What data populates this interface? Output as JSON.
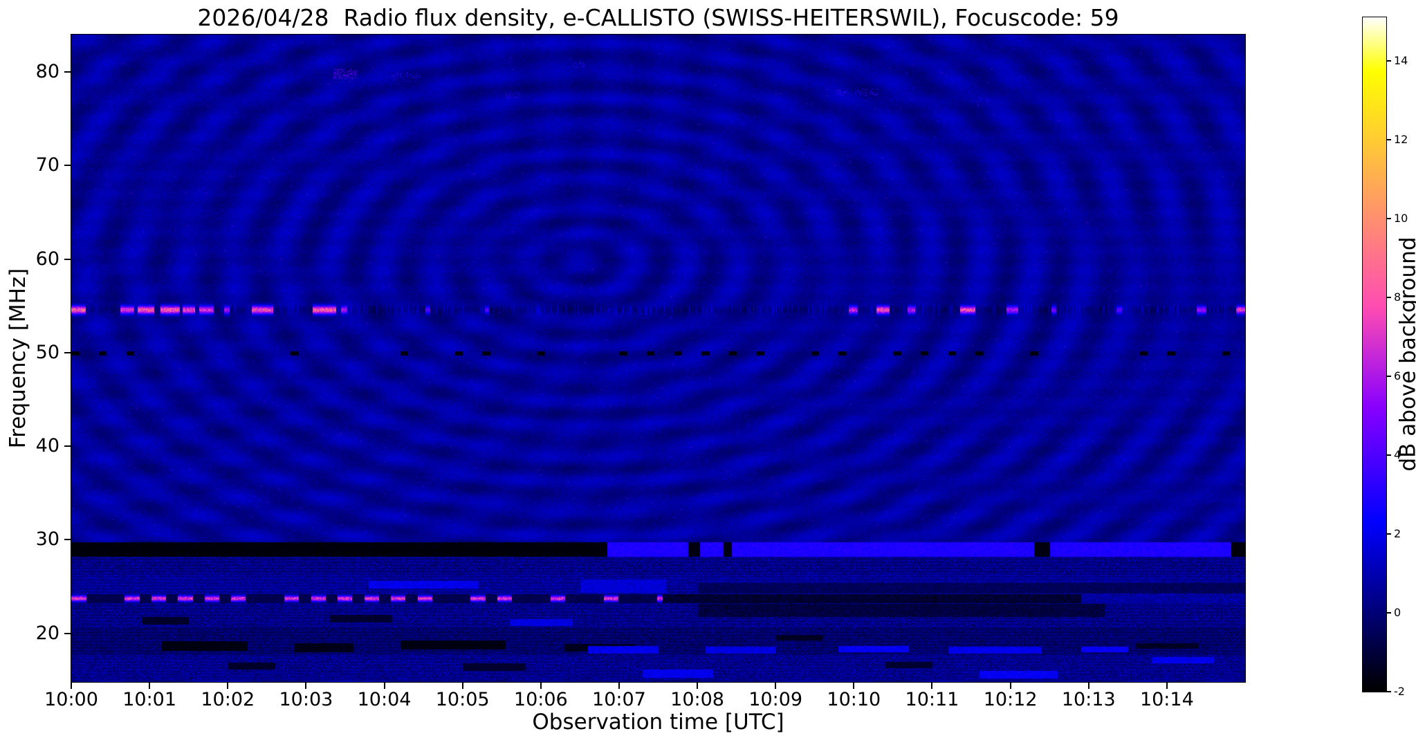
{
  "title": "2026/04/28  Radio flux density, e-CALLISTO (SWISS-HEITERSWIL), Focuscode: 59",
  "xlabel": "Observation time [UTC]",
  "ylabel": "Frequency [MHz]",
  "colorbar": {
    "label": "dB above background",
    "ticks": [
      -2,
      0,
      2,
      4,
      6,
      8,
      10,
      12,
      14
    ],
    "vmin": -2,
    "vmax": 15.1,
    "colormap": "gnuplot2"
  },
  "chart_data": {
    "type": "heatmap",
    "station": "SWISS-HEITERSWIL",
    "date": "2026/04/28",
    "focuscode": 59,
    "x_ticks": [
      "10:00",
      "10:01",
      "10:02",
      "10:03",
      "10:04",
      "10:05",
      "10:06",
      "10:07",
      "10:08",
      "10:09",
      "10:10",
      "10:11",
      "10:12",
      "10:13",
      "10:14"
    ],
    "x_range_minutes": [
      0,
      15
    ],
    "y_ticks": [
      20,
      30,
      40,
      50,
      60,
      70,
      80
    ],
    "freq_range_mhz": [
      14.8,
      84.0
    ],
    "background_db": 0.6,
    "noise_db": 0.45,
    "interference_ripples": {
      "amp1": 0.4,
      "c1x": 740,
      "c1y": 330,
      "amp2": 0.22,
      "c2x": -300,
      "c2y": 80
    },
    "features": [
      {
        "id": "carrier-55mhz",
        "type": "burst_line",
        "f0": 53.6,
        "f1": 55.6,
        "fc": 54.6,
        "sigma": 0.45,
        "base_shadow": -0.75,
        "faint_line": 1.3,
        "bursts": [
          [
            0.0,
            0.18,
            9.0
          ],
          [
            0.62,
            0.8,
            7.5
          ],
          [
            0.84,
            1.06,
            9.0
          ],
          [
            1.14,
            1.38,
            9.0
          ],
          [
            1.42,
            1.58,
            8.0
          ],
          [
            1.63,
            1.82,
            7.5
          ],
          [
            1.95,
            2.02,
            6.0
          ],
          [
            2.3,
            2.58,
            8.5
          ],
          [
            3.08,
            3.38,
            9.0
          ],
          [
            3.44,
            3.52,
            6.5
          ],
          [
            4.52,
            4.58,
            4.5
          ],
          [
            5.28,
            5.33,
            4.0
          ],
          [
            9.93,
            10.05,
            7.0
          ],
          [
            10.28,
            10.45,
            8.5
          ],
          [
            10.68,
            10.78,
            6.5
          ],
          [
            11.35,
            11.55,
            8.5
          ],
          [
            11.95,
            12.1,
            6.5
          ],
          [
            12.52,
            12.58,
            5.0
          ],
          [
            13.35,
            13.42,
            4.5
          ],
          [
            14.38,
            14.5,
            6.0
          ],
          [
            14.88,
            15.0,
            7.5
          ]
        ]
      },
      {
        "id": "dropout-50mhz",
        "type": "dash_line",
        "f0": 49.71,
        "f1": 50.15,
        "fc": 49.93,
        "period_s": 21,
        "duty_s": 6,
        "skip": 0.35,
        "v": -1.9
      },
      {
        "id": "band-29mhz",
        "type": "segment_band",
        "f0": 28.25,
        "f1": 29.75,
        "segments": [
          [
            0,
            6.85,
            -1.8,
            0.25
          ],
          [
            6.85,
            7.88,
            2.9,
            0.5
          ],
          [
            7.88,
            8.03,
            -1.7,
            0.2
          ],
          [
            8.03,
            8.33,
            2.9,
            0.5
          ],
          [
            8.33,
            8.44,
            -1.7,
            0.2
          ],
          [
            8.44,
            12.3,
            2.9,
            0.5
          ],
          [
            12.3,
            12.5,
            -1.7,
            0.2
          ],
          [
            12.5,
            14.82,
            2.9,
            0.5
          ],
          [
            14.82,
            15,
            -1.8,
            0.2
          ]
        ]
      },
      {
        "id": "band-27mhz",
        "type": "noise_band",
        "f0": 26.3,
        "f1": 28.25,
        "v": 0.25,
        "n": 1.0,
        "stripe": 0.35
      },
      {
        "id": "band-25mhz",
        "type": "noise_band",
        "f0": 24.2,
        "f1": 26.3,
        "v": 0.5,
        "n": 0.9,
        "stripe": 0.3,
        "dark_patch": {
          "t0": 8.0,
          "t1": 15.0,
          "f0": 24.3,
          "f1": 25.4,
          "v": -0.5,
          "n": 0.6
        },
        "bright": [
          [
            3.8,
            5.2,
            24.8,
            25.6,
            2.0
          ],
          [
            6.5,
            7.6,
            24.4,
            25.8,
            1.6
          ]
        ]
      },
      {
        "id": "band-24mhz",
        "type": "dash_bursts",
        "f0": 23.3,
        "f1": 24.2,
        "fc": 23.75,
        "sigma": 0.33,
        "phase1_end": 7.55,
        "period": 0.34,
        "duty": 0.55,
        "peak": 6.5,
        "off_v": -0.7,
        "phase2_end": 12.9,
        "phase2_v": -1.15,
        "phase2_n": 0.7,
        "phase3_v": 0.7,
        "phase3_n": 0.9
      },
      {
        "id": "band-22mhz",
        "type": "noise_band",
        "f0": 20.6,
        "f1": 23.3,
        "v": 0.25,
        "n": 1.0,
        "stripe": 0.3,
        "dark_patch": {
          "t0": 8.0,
          "t1": 13.2,
          "f0": 21.8,
          "f1": 23.2,
          "v": -0.9,
          "n": 0.7
        },
        "blotches": [
          [
            0.9,
            1.5,
            21.0,
            21.8,
            -1.3
          ],
          [
            3.3,
            4.1,
            21.2,
            22.0,
            -1.2
          ]
        ],
        "bright": [
          [
            5.6,
            6.4,
            20.8,
            21.6,
            1.8
          ]
        ]
      },
      {
        "id": "band-18mhz",
        "type": "noise_band",
        "f0": 17.8,
        "f1": 20.6,
        "v": -0.2,
        "n": 0.9,
        "stripe": 0.3,
        "blotches": [
          [
            1.15,
            2.25,
            18.2,
            19.2,
            -1.7
          ],
          [
            2.85,
            3.6,
            18.0,
            19.0,
            -1.6
          ],
          [
            4.2,
            5.55,
            18.3,
            19.3,
            -1.7
          ],
          [
            6.3,
            7.2,
            18.1,
            18.9,
            -1.5
          ],
          [
            9.0,
            9.6,
            19.3,
            19.9,
            -1.4
          ],
          [
            13.6,
            14.4,
            18.4,
            19.0,
            -1.4
          ]
        ],
        "bright": [
          [
            6.6,
            7.5,
            17.9,
            18.7,
            2.0
          ],
          [
            8.1,
            9.0,
            17.9,
            18.6,
            1.8
          ],
          [
            9.8,
            10.7,
            18.0,
            18.7,
            2.2
          ],
          [
            11.2,
            12.4,
            17.9,
            18.6,
            2.0
          ],
          [
            12.9,
            13.5,
            18.0,
            18.6,
            2.3
          ]
        ]
      },
      {
        "id": "band-16mhz",
        "type": "noise_band",
        "f0": 15.0,
        "f1": 17.8,
        "v": 0.35,
        "n": 1.0,
        "stripe": 0.25,
        "blotches": [
          [
            2.0,
            2.6,
            16.2,
            16.9,
            -1.3
          ],
          [
            5.0,
            5.8,
            16.0,
            16.8,
            -1.2
          ],
          [
            10.4,
            11.0,
            16.3,
            17.0,
            -1.2
          ]
        ],
        "bright": [
          [
            7.3,
            8.2,
            15.3,
            16.2,
            2.0
          ],
          [
            11.6,
            12.6,
            15.2,
            16.0,
            2.2
          ],
          [
            13.8,
            14.6,
            16.8,
            17.5,
            2.0
          ]
        ]
      },
      {
        "id": "high-band-speckles",
        "type": "speckle_clusters",
        "f0": 65.0,
        "f1": 84.0,
        "clusters": [
          [
            3.35,
            3.65,
            79.2,
            80.4,
            0.25,
            3.5
          ],
          [
            4.1,
            4.45,
            79.0,
            80.0,
            0.12,
            2.5
          ],
          [
            5.55,
            5.75,
            77.2,
            78.0,
            0.15,
            2.5
          ],
          [
            6.4,
            6.55,
            80.5,
            81.2,
            0.12,
            2.5
          ],
          [
            9.75,
            10.3,
            77.5,
            78.3,
            0.15,
            2.5
          ],
          [
            11.5,
            11.75,
            76.8,
            77.4,
            0.1,
            2.2
          ],
          [
            7.9,
            8.05,
            69.5,
            70.1,
            0.1,
            2.0
          ]
        ]
      }
    ]
  }
}
